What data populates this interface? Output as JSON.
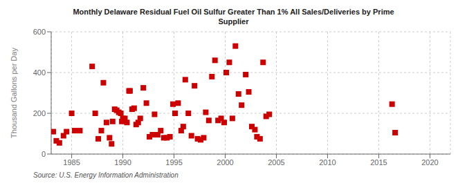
{
  "chart_data": {
    "type": "scatter",
    "title": "Monthly Delaware Residual Fuel Oil Sulfur Greater Than 1% All Sales/Deliveries by Prime\nSupplier",
    "ylabel": "Thousand Gallons per Day",
    "annotations": [
      "Source: U.S. Energy Information Administration"
    ],
    "xlim": [
      1983,
      2022
    ],
    "ylim": [
      0,
      600
    ],
    "xticks": [
      1985,
      1990,
      1995,
      2000,
      2005,
      2010,
      2015,
      2020
    ],
    "yticks": [
      0,
      200,
      400,
      600
    ],
    "grid": true,
    "color": "#cc0000",
    "marker": "square",
    "x": [
      1983.2,
      1983.5,
      1983.8,
      1984.2,
      1984.5,
      1985.0,
      1985.3,
      1985.8,
      1987.0,
      1987.3,
      1987.6,
      1987.9,
      1988.1,
      1988.4,
      1988.7,
      1988.9,
      1989.0,
      1989.2,
      1989.4,
      1989.6,
      1989.8,
      1989.9,
      1990.0,
      1990.2,
      1990.4,
      1990.6,
      1990.7,
      1990.9,
      1991.1,
      1991.3,
      1991.5,
      1991.7,
      1992.0,
      1992.3,
      1992.6,
      1992.9,
      1993.1,
      1993.4,
      1993.7,
      1994.0,
      1994.3,
      1994.6,
      1994.9,
      1995.1,
      1995.4,
      1995.7,
      1995.9,
      1996.1,
      1996.4,
      1996.7,
      1997.0,
      1997.3,
      1997.6,
      1997.9,
      1998.1,
      1998.4,
      1998.7,
      1999.0,
      1999.3,
      1999.6,
      1999.9,
      2000.1,
      2000.4,
      2000.7,
      2001.0,
      2001.3,
      2001.6,
      2002.0,
      2002.3,
      2002.6,
      2002.9,
      2003.1,
      2003.4,
      2003.7,
      2004.0,
      2004.3,
      2016.3,
      2016.6
    ],
    "values": [
      110,
      65,
      55,
      90,
      110,
      200,
      115,
      115,
      430,
      200,
      75,
      115,
      350,
      155,
      80,
      50,
      160,
      220,
      215,
      205,
      200,
      160,
      175,
      175,
      155,
      310,
      310,
      220,
      225,
      145,
      155,
      175,
      325,
      250,
      85,
      95,
      195,
      95,
      115,
      80,
      80,
      85,
      245,
      200,
      250,
      115,
      135,
      365,
      200,
      90,
      335,
      75,
      70,
      80,
      205,
      165,
      380,
      460,
      165,
      175,
      155,
      400,
      450,
      175,
      530,
      295,
      240,
      390,
      305,
      135,
      120,
      85,
      75,
      450,
      185,
      195,
      245,
      105
    ]
  }
}
